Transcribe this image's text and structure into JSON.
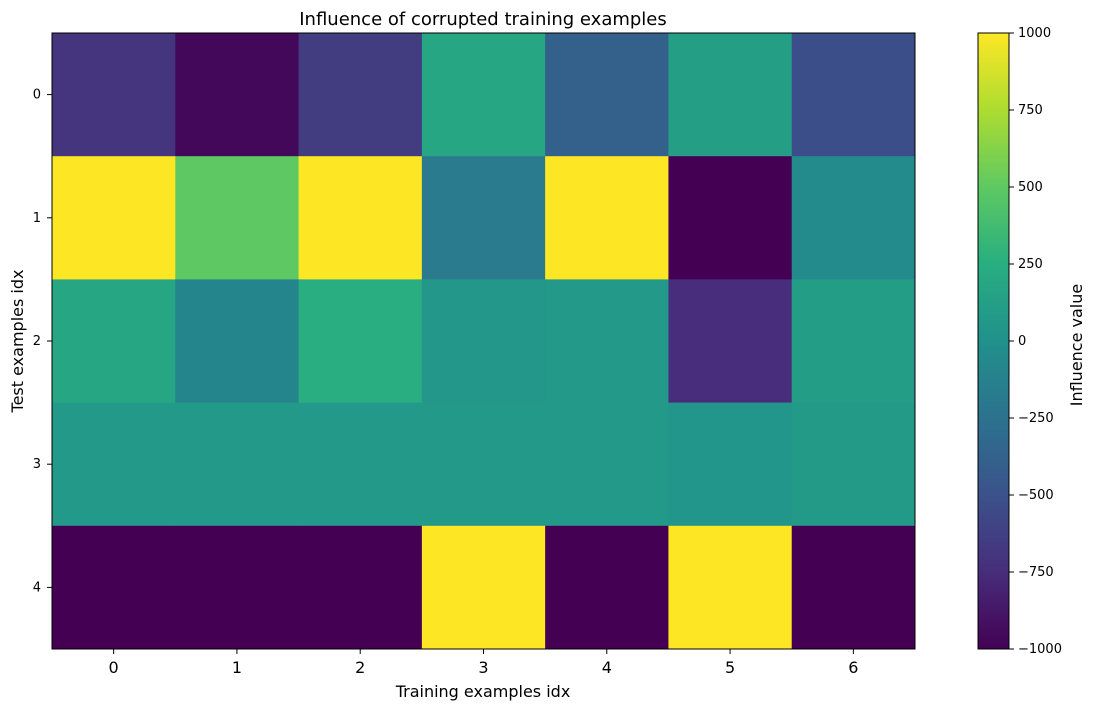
{
  "chart_data": {
    "type": "heatmap",
    "title": "Influence of corrupted training examples",
    "xlabel": "Training examples idx",
    "ylabel": "Test examples idx",
    "x_categories": [
      "0",
      "1",
      "2",
      "3",
      "4",
      "5",
      "6"
    ],
    "y_categories": [
      "0",
      "1",
      "2",
      "3",
      "4"
    ],
    "values": [
      [
        -700,
        -960,
        -650,
        180,
        -380,
        120,
        -530
      ],
      [
        1000,
        500,
        1000,
        -180,
        1000,
        -1000,
        -50
      ],
      [
        180,
        -100,
        250,
        50,
        70,
        -750,
        100
      ],
      [
        70,
        70,
        70,
        70,
        70,
        40,
        80
      ],
      [
        -1000,
        -1000,
        -1000,
        1000,
        -1000,
        1000,
        -1000
      ]
    ],
    "colorbar": {
      "label": "Influence value",
      "range": [
        -1000,
        1000
      ],
      "ticks": [
        1000,
        750,
        500,
        250,
        0,
        -250,
        -500,
        -750,
        -1000
      ],
      "tick_labels": [
        "1000",
        "750",
        "500",
        "250",
        "0",
        "−250",
        "−500",
        "−750",
        "−1000"
      ],
      "colormap": "viridis"
    },
    "grid": false
  }
}
